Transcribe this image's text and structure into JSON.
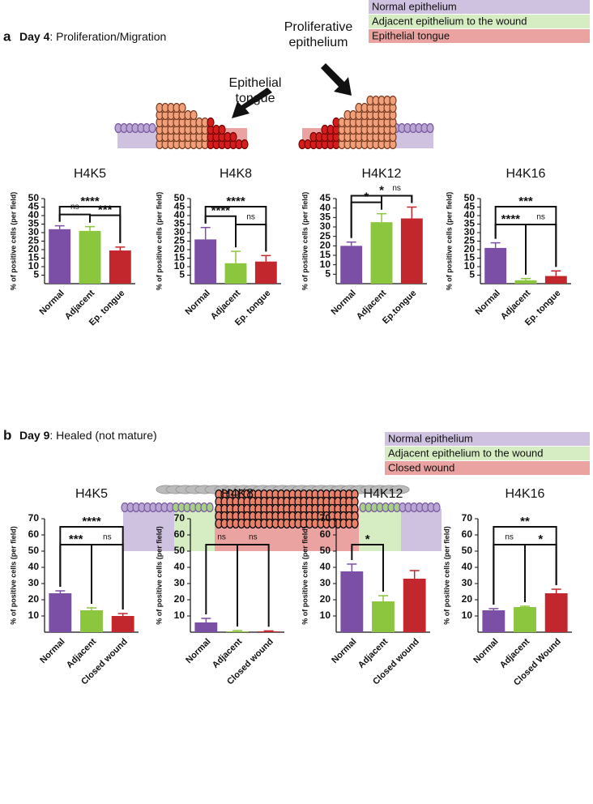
{
  "panel_a": {
    "label": "a",
    "day": "Day 4",
    "title": ": Proliferation/Migration",
    "legend": [
      "Normal epithelium",
      "Adjacent epithelium to the wound",
      "Epithelial tongue"
    ],
    "legend_colors": [
      "#cfc1e0",
      "#d6ecc2",
      "#eba3a1"
    ],
    "annotations": [
      "Epithelial tongue",
      "Proliferative epithelium"
    ]
  },
  "panel_b": {
    "label": "b",
    "day": "Day 9",
    "title": ": Healed (not mature)",
    "legend": [
      "Normal epithelium",
      "Adjacent epithelium to the wound",
      "Closed wound"
    ],
    "legend_colors": [
      "#cfc1e0",
      "#d6ecc2",
      "#eba3a1"
    ]
  },
  "chart_data": [
    {
      "type": "bar",
      "title": "H4K5",
      "y_label": "% of positive cells (per field)",
      "categories": [
        "Normal",
        "Adjacent",
        "Ep. tongue"
      ],
      "values": [
        32,
        31,
        19.5
      ],
      "errors": [
        2,
        2.5,
        2
      ],
      "colors": [
        "#7b4fa5",
        "#8cc63f",
        "#c1272d"
      ],
      "ylim": [
        0,
        50
      ],
      "yticks": [
        5,
        10,
        15,
        20,
        25,
        30,
        35,
        40,
        45,
        50
      ],
      "comparisons": [
        {
          "pair": [
            0,
            1
          ],
          "label": "ns"
        },
        {
          "pair": [
            1,
            2
          ],
          "label": "***"
        },
        {
          "pair": [
            0,
            2
          ],
          "label": "****"
        }
      ]
    },
    {
      "type": "bar",
      "title": "H4K8",
      "y_label": "% of positive cells (per field)",
      "categories": [
        "Normal",
        "Adjacent",
        "Ep. tongue"
      ],
      "values": [
        26,
        12,
        13
      ],
      "errors": [
        7,
        7,
        3.5
      ],
      "colors": [
        "#7b4fa5",
        "#8cc63f",
        "#c1272d"
      ],
      "ylim": [
        0,
        50
      ],
      "yticks": [
        5,
        10,
        15,
        20,
        25,
        30,
        35,
        40,
        45,
        50
      ],
      "comparisons": [
        {
          "pair": [
            0,
            1
          ],
          "label": "****"
        },
        {
          "pair": [
            1,
            2
          ],
          "label": "ns"
        },
        {
          "pair": [
            0,
            2
          ],
          "label": "****"
        }
      ]
    },
    {
      "type": "bar",
      "title": "H4K12",
      "y_label": "% of positive cells (per field)",
      "categories": [
        "Normal",
        "Adjacent",
        "Ep.tongue"
      ],
      "values": [
        20,
        32.5,
        34.5
      ],
      "errors": [
        2,
        4.5,
        6
      ],
      "colors": [
        "#7b4fa5",
        "#8cc63f",
        "#c1272d"
      ],
      "ylim": [
        0,
        45
      ],
      "yticks": [
        5,
        10,
        15,
        20,
        25,
        30,
        35,
        40,
        45
      ],
      "comparisons": [
        {
          "pair": [
            0,
            1
          ],
          "label": "*"
        },
        {
          "pair": [
            1,
            2
          ],
          "label": "ns"
        },
        {
          "pair": [
            0,
            2
          ],
          "label": "*"
        }
      ]
    },
    {
      "type": "bar",
      "title": "H4K16",
      "y_label": "% of positive cells (per field)",
      "categories": [
        "Normal",
        "Adjacent",
        "Ep. tongue"
      ],
      "values": [
        21,
        2,
        4.5
      ],
      "errors": [
        3,
        1,
        3
      ],
      "colors": [
        "#7b4fa5",
        "#8cc63f",
        "#c1272d"
      ],
      "ylim": [
        0,
        50
      ],
      "yticks": [
        5,
        10,
        15,
        20,
        25,
        30,
        35,
        40,
        45,
        50
      ],
      "comparisons": [
        {
          "pair": [
            0,
            1
          ],
          "label": "****"
        },
        {
          "pair": [
            1,
            2
          ],
          "label": "ns"
        },
        {
          "pair": [
            0,
            2
          ],
          "label": "***"
        }
      ]
    },
    {
      "type": "bar",
      "title": "H4K5",
      "y_label": "% of positive cells (per field)",
      "categories": [
        "Normal",
        "Adjacent",
        "Closed wound"
      ],
      "values": [
        24,
        13.5,
        10
      ],
      "errors": [
        1.5,
        1.5,
        1.5
      ],
      "colors": [
        "#7b4fa5",
        "#8cc63f",
        "#c1272d"
      ],
      "ylim": [
        0,
        70
      ],
      "yticks": [
        10,
        20,
        30,
        40,
        50,
        60,
        70
      ],
      "comparisons": [
        {
          "pair": [
            0,
            1
          ],
          "label": "***"
        },
        {
          "pair": [
            1,
            2
          ],
          "label": "ns"
        },
        {
          "pair": [
            0,
            2
          ],
          "label": "****"
        }
      ]
    },
    {
      "type": "bar",
      "title": "H4K8",
      "y_label": "% of positive cells (per field)",
      "categories": [
        "Normal",
        "Adjacent",
        "Closed wound"
      ],
      "values": [
        6,
        0.5,
        0.5
      ],
      "errors": [
        2.5,
        0.5,
        0.3
      ],
      "colors": [
        "#7b4fa5",
        "#8cc63f",
        "#c1272d"
      ],
      "ylim": [
        0,
        70
      ],
      "yticks": [
        10,
        20,
        30,
        40,
        50,
        60,
        70
      ],
      "comparisons": [
        {
          "pair": [
            0,
            1
          ],
          "label": "ns"
        },
        {
          "pair": [
            1,
            2
          ],
          "label": "ns"
        }
      ]
    },
    {
      "type": "bar",
      "title": "H4K12",
      "y_label": "% of positive cells (per field)",
      "categories": [
        "Normal",
        "Adjacent",
        "Closed wound"
      ],
      "values": [
        37.5,
        19,
        33
      ],
      "errors": [
        4.5,
        3.5,
        5
      ],
      "colors": [
        "#7b4fa5",
        "#8cc63f",
        "#c1272d"
      ],
      "ylim": [
        0,
        70
      ],
      "yticks": [
        10,
        20,
        30,
        40,
        50,
        60,
        70
      ],
      "comparisons": [
        {
          "pair": [
            0,
            1
          ],
          "label": "*"
        }
      ]
    },
    {
      "type": "bar",
      "title": "H4K16",
      "y_label": "% of positive cells (per field)",
      "categories": [
        "Normal",
        "Adjacent",
        "Closed Wound"
      ],
      "values": [
        13.5,
        15.5,
        24
      ],
      "errors": [
        1,
        0.5,
        2.5
      ],
      "colors": [
        "#7b4fa5",
        "#8cc63f",
        "#c1272d"
      ],
      "ylim": [
        0,
        70
      ],
      "yticks": [
        10,
        20,
        30,
        40,
        50,
        60,
        70
      ],
      "comparisons": [
        {
          "pair": [
            0,
            1
          ],
          "label": "ns"
        },
        {
          "pair": [
            1,
            2
          ],
          "label": "*"
        },
        {
          "pair": [
            0,
            2
          ],
          "label": "**"
        }
      ]
    }
  ]
}
